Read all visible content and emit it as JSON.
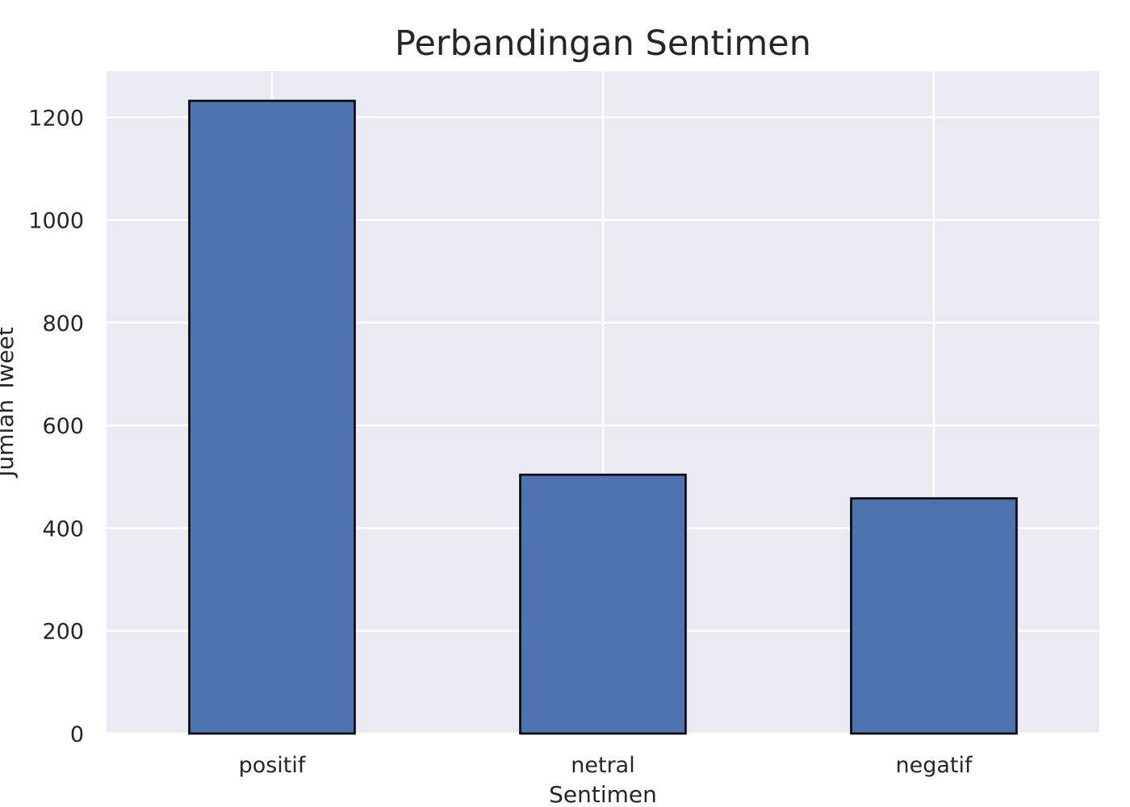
{
  "chart_data": {
    "type": "bar",
    "title": "Perbandingan Sentimen",
    "xlabel": "Sentimen",
    "ylabel": "Jumlah Tweet",
    "categories": [
      "positif",
      "netral",
      "negatif"
    ],
    "values": [
      1232,
      504,
      458
    ],
    "ylim": [
      0,
      1290
    ],
    "yticks": [
      0,
      200,
      400,
      600,
      800,
      1000,
      1200
    ],
    "grid": true,
    "legend": "none",
    "colors": {
      "bar": "#4c72b0",
      "bar_edge": "#000000",
      "plot_background": "#eaeaf2",
      "grid": "#ffffff",
      "text": "#262626"
    }
  }
}
